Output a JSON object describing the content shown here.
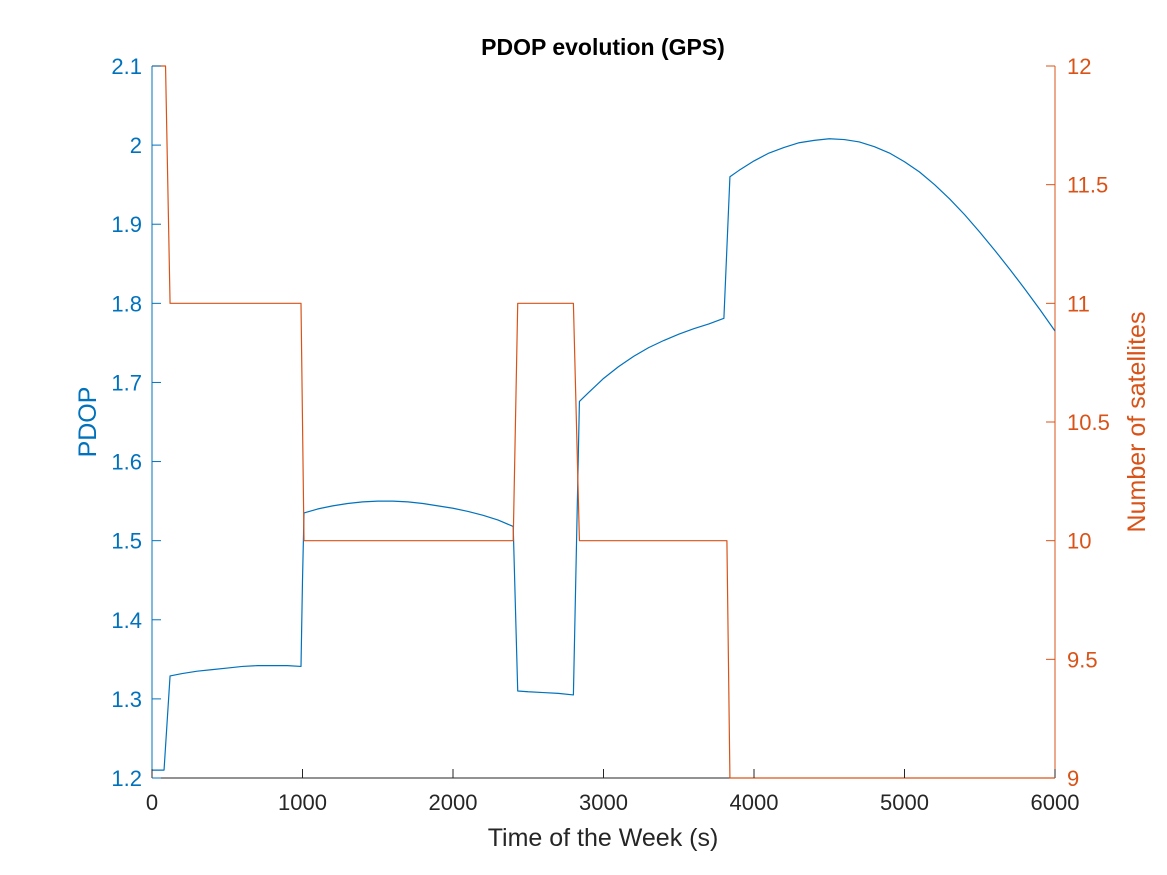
{
  "colors": {
    "left_axis": "#0072BD",
    "right_axis": "#D95319",
    "x_axis": "#262626"
  },
  "chart_data": {
    "type": "line",
    "title": "PDOP evolution (GPS)",
    "xlabel": "Time of the Week (s)",
    "ylabel_left": "PDOP",
    "ylabel_right": "Number of satellites",
    "xlim": [
      0,
      6000
    ],
    "ylim_left": [
      1.2,
      2.1
    ],
    "ylim_right": [
      9,
      12
    ],
    "xticks": [
      0,
      1000,
      2000,
      3000,
      4000,
      5000,
      6000
    ],
    "yticks_left": [
      1.2,
      1.3,
      1.4,
      1.5,
      1.6,
      1.7,
      1.8,
      1.9,
      2,
      2.1
    ],
    "yticks_right": [
      9,
      9.5,
      10,
      10.5,
      11,
      11.5,
      12
    ],
    "grid": false,
    "series": [
      {
        "axis": "left",
        "color": "#0072BD",
        "x": [
          0,
          80,
          120,
          200,
          300,
          400,
          500,
          600,
          700,
          800,
          900,
          990,
          1000,
          1010,
          1100,
          1200,
          1300,
          1400,
          1500,
          1600,
          1700,
          1800,
          1900,
          2000,
          2100,
          2200,
          2300,
          2400,
          2430,
          2500,
          2600,
          2700,
          2800,
          2840,
          2900,
          3000,
          3100,
          3200,
          3300,
          3400,
          3500,
          3600,
          3700,
          3800,
          3840,
          3900,
          4000,
          4100,
          4200,
          4300,
          4400,
          4500,
          4600,
          4700,
          4800,
          4900,
          5000,
          5100,
          5200,
          5300,
          5400,
          5500,
          5600,
          5700,
          5800,
          5900,
          6000
        ],
        "values": [
          1.21,
          1.21,
          1.329,
          1.332,
          1.335,
          1.337,
          1.339,
          1.341,
          1.342,
          1.342,
          1.342,
          1.341,
          1.45,
          1.535,
          1.54,
          1.544,
          1.547,
          1.549,
          1.55,
          1.55,
          1.549,
          1.547,
          1.544,
          1.541,
          1.537,
          1.532,
          1.526,
          1.518,
          1.31,
          1.309,
          1.308,
          1.307,
          1.305,
          1.676,
          1.687,
          1.705,
          1.72,
          1.733,
          1.744,
          1.753,
          1.761,
          1.768,
          1.774,
          1.781,
          1.96,
          1.968,
          1.98,
          1.99,
          1.997,
          2.003,
          2.006,
          2.008,
          2.007,
          2.004,
          1.998,
          1.99,
          1.979,
          1.966,
          1.95,
          1.932,
          1.912,
          1.89,
          1.867,
          1.843,
          1.818,
          1.792,
          1.765
        ]
      },
      {
        "axis": "right",
        "color": "#D95319",
        "x": [
          0,
          90,
          120,
          990,
          1010,
          2400,
          2430,
          2800,
          2840,
          3820,
          3840,
          6000
        ],
        "values": [
          12,
          12,
          11,
          11,
          10,
          10,
          11,
          11,
          10,
          10,
          9,
          9
        ]
      }
    ]
  }
}
